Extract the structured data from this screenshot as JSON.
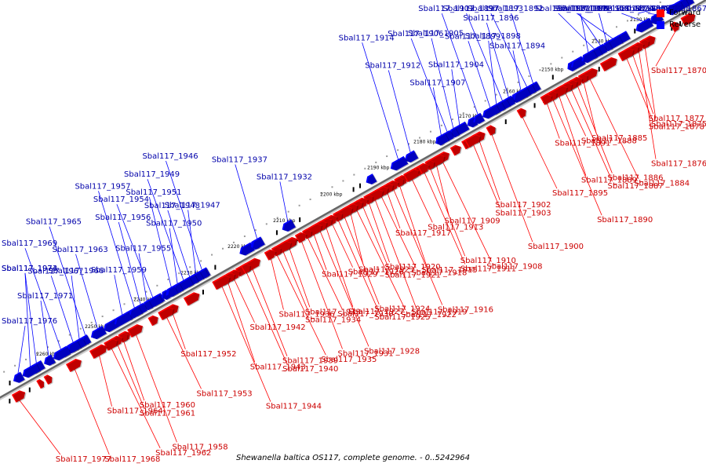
{
  "caption": "Shewanella baltica OS117, complete genome. - 0..5242964",
  "legend": {
    "forward_label": "Forward",
    "reverse_label": "Reverse",
    "forward_color": "#ff0000",
    "reverse_color": "#0000ff"
  },
  "colors": {
    "axis": "#666666",
    "forward_label": "#cc0000",
    "reverse_label": "#0000aa"
  },
  "ticks": [
    "2130 kbp",
    "2140 kbp",
    "2150 kbp",
    "2160 kbp",
    "2170 kbp",
    "2180 kbp",
    "2190 kbp",
    "2200 kbp",
    "2210 kbp",
    "2220 kbp",
    "2230 kbp",
    "2240 kbp",
    "2250 kbp",
    "2260 kbp"
  ],
  "forward_genes": [
    "Sbal117_1870",
    "Sbal117_1875",
    "Sbal117_1876",
    "Sbal117_1877",
    "Sbal117_1878",
    "Sbal117_1884",
    "Sbal117_1885",
    "Sbal117_1886",
    "Sbal117_1887",
    "Sbal117_1888",
    "Sbal117_1889",
    "Sbal117_1890",
    "Sbal117_1891",
    "Sbal117_1895",
    "Sbal117_1900",
    "Sbal117_1902",
    "Sbal117_1903",
    "Sbal117_1908",
    "Sbal117_1909",
    "Sbal117_1910",
    "Sbal117_1911",
    "Sbal117_1913",
    "Sbal117_1915",
    "Sbal117_1916",
    "Sbal117_1917",
    "Sbal117_1918",
    "Sbal117_1919",
    "Sbal117_1920",
    "Sbal117_1921",
    "Sbal117_1922",
    "Sbal117_1923",
    "Sbal117_1924",
    "Sbal117_1925",
    "Sbal117_1926",
    "Sbal117_1927",
    "Sbal117_1928",
    "Sbal117_1929",
    "Sbal117_1930",
    "Sbal117_1931",
    "Sbal117_1933",
    "Sbal117_1934",
    "Sbal117_1935",
    "Sbal117_1936",
    "Sbal117_1939",
    "Sbal117_1940",
    "Sbal117_1942",
    "Sbal117_1943",
    "Sbal117_1944",
    "Sbal117_1952",
    "Sbal117_1953",
    "Sbal117_1958",
    "Sbal117_1960",
    "Sbal117_1961",
    "Sbal117_1962",
    "Sbal117_1964",
    "Sbal117_1968",
    "Sbal117_1977"
  ],
  "reverse_genes": [
    "Sbal117_1867",
    "Sbal117_1868",
    "Sbal117_1869",
    "Sbal117_1872",
    "Sbal117_1874",
    "Sbal117_1879",
    "Sbal117_1880",
    "Sbal117_1881",
    "Sbal117_1882",
    "Sbal117_1883",
    "Sbal117_1892",
    "Sbal117_1893",
    "Sbal117_1894",
    "Sbal117_1896",
    "Sbal117_1897",
    "Sbal117_1898",
    "Sbal117_1899",
    "Sbal117_1901",
    "Sbal117_1904",
    "Sbal117_1905",
    "Sbal117_1906",
    "Sbal117_1907",
    "Sbal117_1912",
    "Sbal117_1914",
    "Sbal117_1932",
    "Sbal117_1937",
    "Sbal117_1946",
    "Sbal117_1947",
    "Sbal117_1948",
    "Sbal117_1949",
    "Sbal117_1950",
    "Sbal117_1951",
    "Sbal117_1954",
    "Sbal117_1955",
    "Sbal117_1956",
    "Sbal117_1957",
    "Sbal117_1959",
    "Sbal117_1963",
    "Sbal117_1965",
    "Sbal117_1966",
    "Sbal117_1967",
    "Sbal117_1969",
    "Sbal117_1971",
    "Sbal117_1973",
    "Sbal117_1974",
    "Sbal117_1976"
  ]
}
